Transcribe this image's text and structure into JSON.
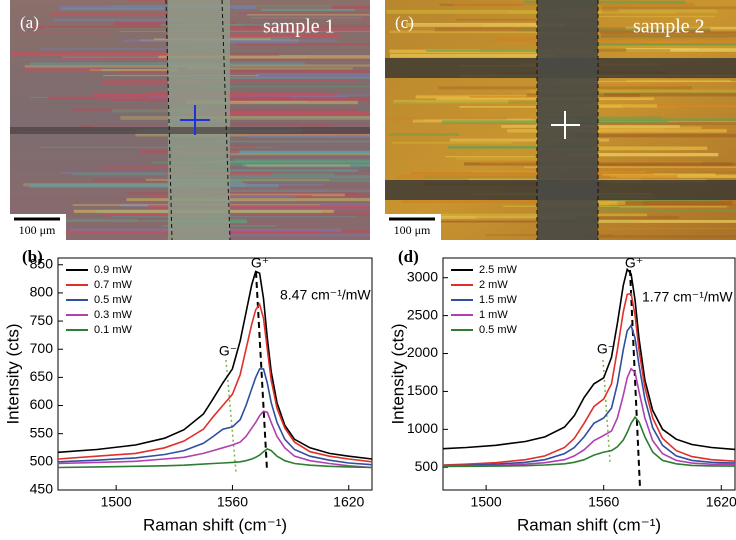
{
  "images": [
    {
      "panel": "(a)",
      "label": "sample 1",
      "scale": "100 μm"
    },
    {
      "panel": "(c)",
      "label": "sample 2",
      "scale": "100 μm"
    }
  ],
  "chart_data": [
    {
      "type": "line",
      "panel": "(b)",
      "xlabel": "Raman shift (cm⁻¹)",
      "ylabel": "Intensity (cts)",
      "xlim": [
        1470,
        1632
      ],
      "xticks": [
        1500,
        1560,
        1620
      ],
      "ylim": [
        450,
        862
      ],
      "yticks": [
        450,
        500,
        550,
        600,
        650,
        700,
        750,
        800,
        850
      ],
      "legend": "upper left",
      "annotations": [
        "G⁺",
        "8.47 cm⁻¹/mW",
        "G⁻"
      ],
      "x": [
        1470,
        1490,
        1510,
        1525,
        1535,
        1545,
        1550,
        1555,
        1560,
        1564,
        1567,
        1570,
        1572,
        1574,
        1576,
        1578,
        1580,
        1583,
        1587,
        1592,
        1600,
        1610,
        1620,
        1632
      ],
      "series": [
        {
          "name": "0.9 mW",
          "color": "#000000",
          "values": [
            517,
            522,
            530,
            542,
            557,
            585,
            612,
            640,
            665,
            715,
            765,
            815,
            838,
            835,
            790,
            720,
            660,
            605,
            565,
            540,
            525,
            515,
            510,
            505
          ]
        },
        {
          "name": "0.7 mW",
          "color": "#e0302a",
          "values": [
            505,
            510,
            515,
            525,
            537,
            558,
            580,
            600,
            620,
            655,
            700,
            745,
            770,
            780,
            755,
            700,
            645,
            595,
            560,
            535,
            518,
            510,
            505,
            500
          ]
        },
        {
          "name": "0.5 mW",
          "color": "#2f4f9f",
          "values": [
            500,
            503,
            507,
            513,
            520,
            533,
            545,
            558,
            562,
            575,
            600,
            630,
            650,
            665,
            665,
            640,
            605,
            570,
            540,
            522,
            510,
            503,
            498,
            495
          ]
        },
        {
          "name": "0.3 mW",
          "color": "#b040b0",
          "values": [
            497,
            499,
            501,
            505,
            508,
            515,
            520,
            525,
            530,
            535,
            545,
            560,
            570,
            582,
            590,
            588,
            570,
            545,
            525,
            510,
            502,
            497,
            493,
            490
          ]
        },
        {
          "name": "0.1 mW",
          "color": "#2e7d32",
          "values": [
            490,
            491,
            492,
            493,
            494,
            496,
            497,
            498,
            499,
            500,
            502,
            505,
            508,
            512,
            518,
            523,
            520,
            510,
            502,
            497,
            494,
            492,
            491,
            490
          ]
        }
      ]
    },
    {
      "type": "line",
      "panel": "(d)",
      "xlabel": "Raman shift (cm⁻¹)",
      "ylabel": "Intensity (cts)",
      "xlim": [
        1478,
        1627
      ],
      "xticks": [
        1500,
        1560,
        1620
      ],
      "ylim": [
        200,
        3260
      ],
      "yticks": [
        500,
        1000,
        1500,
        2000,
        2500,
        3000
      ],
      "legend": "upper left",
      "annotations": [
        "G⁺",
        "1.77 cm⁻¹/mW",
        "G⁻"
      ],
      "x": [
        1478,
        1490,
        1505,
        1520,
        1530,
        1540,
        1545,
        1550,
        1555,
        1560,
        1564,
        1567,
        1570,
        1572,
        1574,
        1576,
        1578,
        1581,
        1585,
        1590,
        1597,
        1605,
        1615,
        1627
      ],
      "series": [
        {
          "name": "2.5 mW",
          "color": "#000000",
          "values": [
            745,
            760,
            790,
            840,
            900,
            1030,
            1180,
            1420,
            1600,
            1680,
            1950,
            2400,
            2900,
            3110,
            3050,
            2700,
            2200,
            1650,
            1250,
            1000,
            870,
            800,
            760,
            735
          ]
        },
        {
          "name": "2 mW",
          "color": "#e0302a",
          "values": [
            530,
            540,
            560,
            600,
            650,
            760,
            880,
            1080,
            1300,
            1400,
            1600,
            2050,
            2550,
            2780,
            2790,
            2500,
            2050,
            1550,
            1150,
            880,
            720,
            640,
            600,
            580
          ]
        },
        {
          "name": "1.5 mW",
          "color": "#2f4f9f",
          "values": [
            520,
            525,
            540,
            565,
            600,
            680,
            760,
            900,
            1080,
            1150,
            1280,
            1600,
            2050,
            2300,
            2370,
            2200,
            1850,
            1400,
            1020,
            790,
            650,
            590,
            565,
            555
          ]
        },
        {
          "name": "1 mW",
          "color": "#b040b0",
          "values": [
            515,
            518,
            525,
            540,
            560,
            600,
            650,
            730,
            850,
            920,
            980,
            1150,
            1450,
            1680,
            1800,
            1750,
            1500,
            1150,
            850,
            680,
            590,
            555,
            540,
            535
          ]
        },
        {
          "name": "0.5 mW",
          "color": "#2e7d32",
          "values": [
            510,
            512,
            515,
            520,
            530,
            545,
            565,
            600,
            660,
            700,
            720,
            770,
            860,
            960,
            1080,
            1160,
            1100,
            900,
            700,
            590,
            545,
            525,
            518,
            515
          ]
        }
      ]
    }
  ]
}
